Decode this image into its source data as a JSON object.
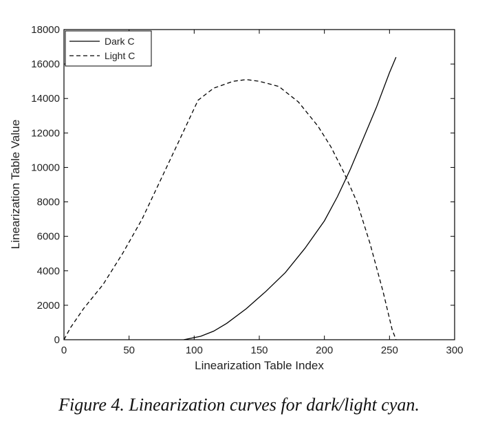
{
  "caption": "Figure 4. Linearization curves for dark/light cyan.",
  "chart_data": {
    "type": "line",
    "title": "",
    "xlabel": "Linearization Table Index",
    "ylabel": "Linearization Table Value",
    "xlim": [
      0,
      300
    ],
    "ylim": [
      0,
      18000
    ],
    "xticks": [
      0,
      50,
      100,
      150,
      200,
      250,
      300
    ],
    "yticks": [
      0,
      2000,
      4000,
      6000,
      8000,
      10000,
      12000,
      14000,
      16000,
      18000
    ],
    "grid": false,
    "legend": "top-left",
    "series": [
      {
        "name": "Dark C",
        "style": "solid",
        "color": "#000000",
        "points": [
          [
            92,
            0
          ],
          [
            105,
            200
          ],
          [
            115,
            500
          ],
          [
            125,
            950
          ],
          [
            140,
            1800
          ],
          [
            155,
            2800
          ],
          [
            170,
            3900
          ],
          [
            185,
            5300
          ],
          [
            200,
            6900
          ],
          [
            210,
            8300
          ],
          [
            220,
            9900
          ],
          [
            230,
            11700
          ],
          [
            240,
            13500
          ],
          [
            250,
            15500
          ],
          [
            255,
            16400
          ]
        ]
      },
      {
        "name": "Light C",
        "style": "dashed",
        "color": "#000000",
        "points": [
          [
            0,
            0
          ],
          [
            5,
            700
          ],
          [
            15,
            1800
          ],
          [
            30,
            3200
          ],
          [
            45,
            5000
          ],
          [
            60,
            7000
          ],
          [
            75,
            9400
          ],
          [
            90,
            11800
          ],
          [
            103,
            13900
          ],
          [
            115,
            14600
          ],
          [
            130,
            15000
          ],
          [
            140,
            15100
          ],
          [
            150,
            15000
          ],
          [
            165,
            14700
          ],
          [
            180,
            13800
          ],
          [
            195,
            12400
          ],
          [
            205,
            11200
          ],
          [
            215,
            9700
          ],
          [
            225,
            8000
          ],
          [
            235,
            5600
          ],
          [
            245,
            2800
          ],
          [
            252,
            600
          ],
          [
            255,
            0
          ]
        ]
      }
    ]
  }
}
